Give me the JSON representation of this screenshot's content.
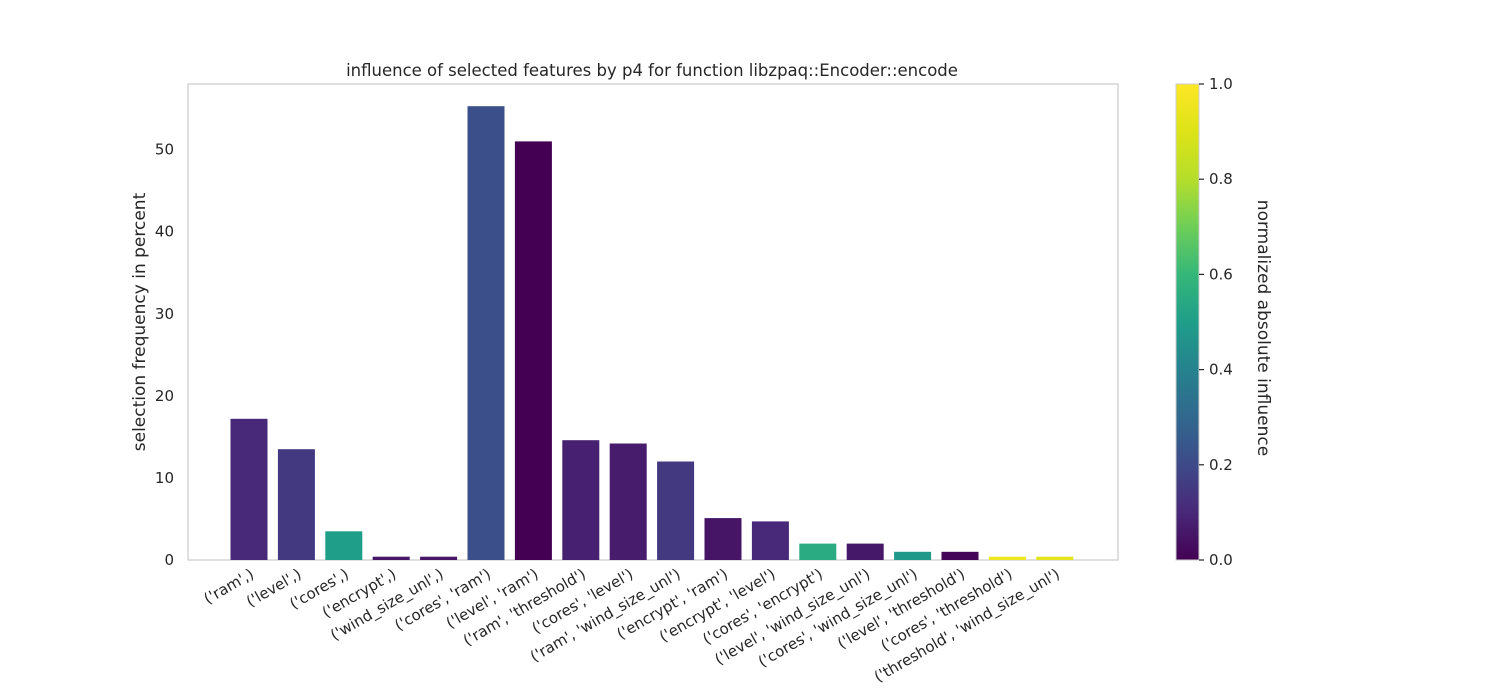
{
  "chart_data": {
    "type": "bar",
    "title": "influence of selected features by p4 for function libzpaq::Encoder::encode",
    "xlabel": "",
    "ylabel": "selection frequency in percent",
    "ylim": [
      0,
      58
    ],
    "yticks": [
      0,
      10,
      20,
      30,
      40,
      50
    ],
    "grid": false,
    "categories": [
      "('ram',)",
      "('level',)",
      "('cores',)",
      "('encrypt',)",
      "('wind_size_unl',)",
      "('cores', 'ram')",
      "('level', 'ram')",
      "('ram', 'threshold')",
      "('cores', 'level')",
      "('ram', 'wind_size_unl')",
      "('encrypt', 'ram')",
      "('encrypt', 'level')",
      "('cores', 'encrypt')",
      "('level', 'wind_size_unl')",
      "('cores', 'wind_size_unl')",
      "('level', 'threshold')",
      "('cores', 'threshold')",
      "('threshold', 'wind_size_unl')"
    ],
    "values": [
      17.2,
      13.5,
      3.5,
      0.4,
      0.4,
      55.3,
      51.0,
      14.6,
      14.2,
      12.0,
      5.1,
      4.7,
      2.0,
      2.0,
      1.0,
      1.0,
      0.4,
      0.4
    ],
    "influence": [
      0.1,
      0.15,
      0.5,
      0.05,
      0.05,
      0.22,
      0.0,
      0.08,
      0.07,
      0.15,
      0.05,
      0.1,
      0.55,
      0.06,
      0.48,
      0.01,
      0.95,
      0.92
    ],
    "colorbar": {
      "label": "normalized absolute influence",
      "range": [
        0.0,
        1.0
      ],
      "ticks": [
        "0.0",
        "0.2",
        "0.4",
        "0.6",
        "0.8",
        "1.0"
      ],
      "colormap": "viridis"
    }
  }
}
